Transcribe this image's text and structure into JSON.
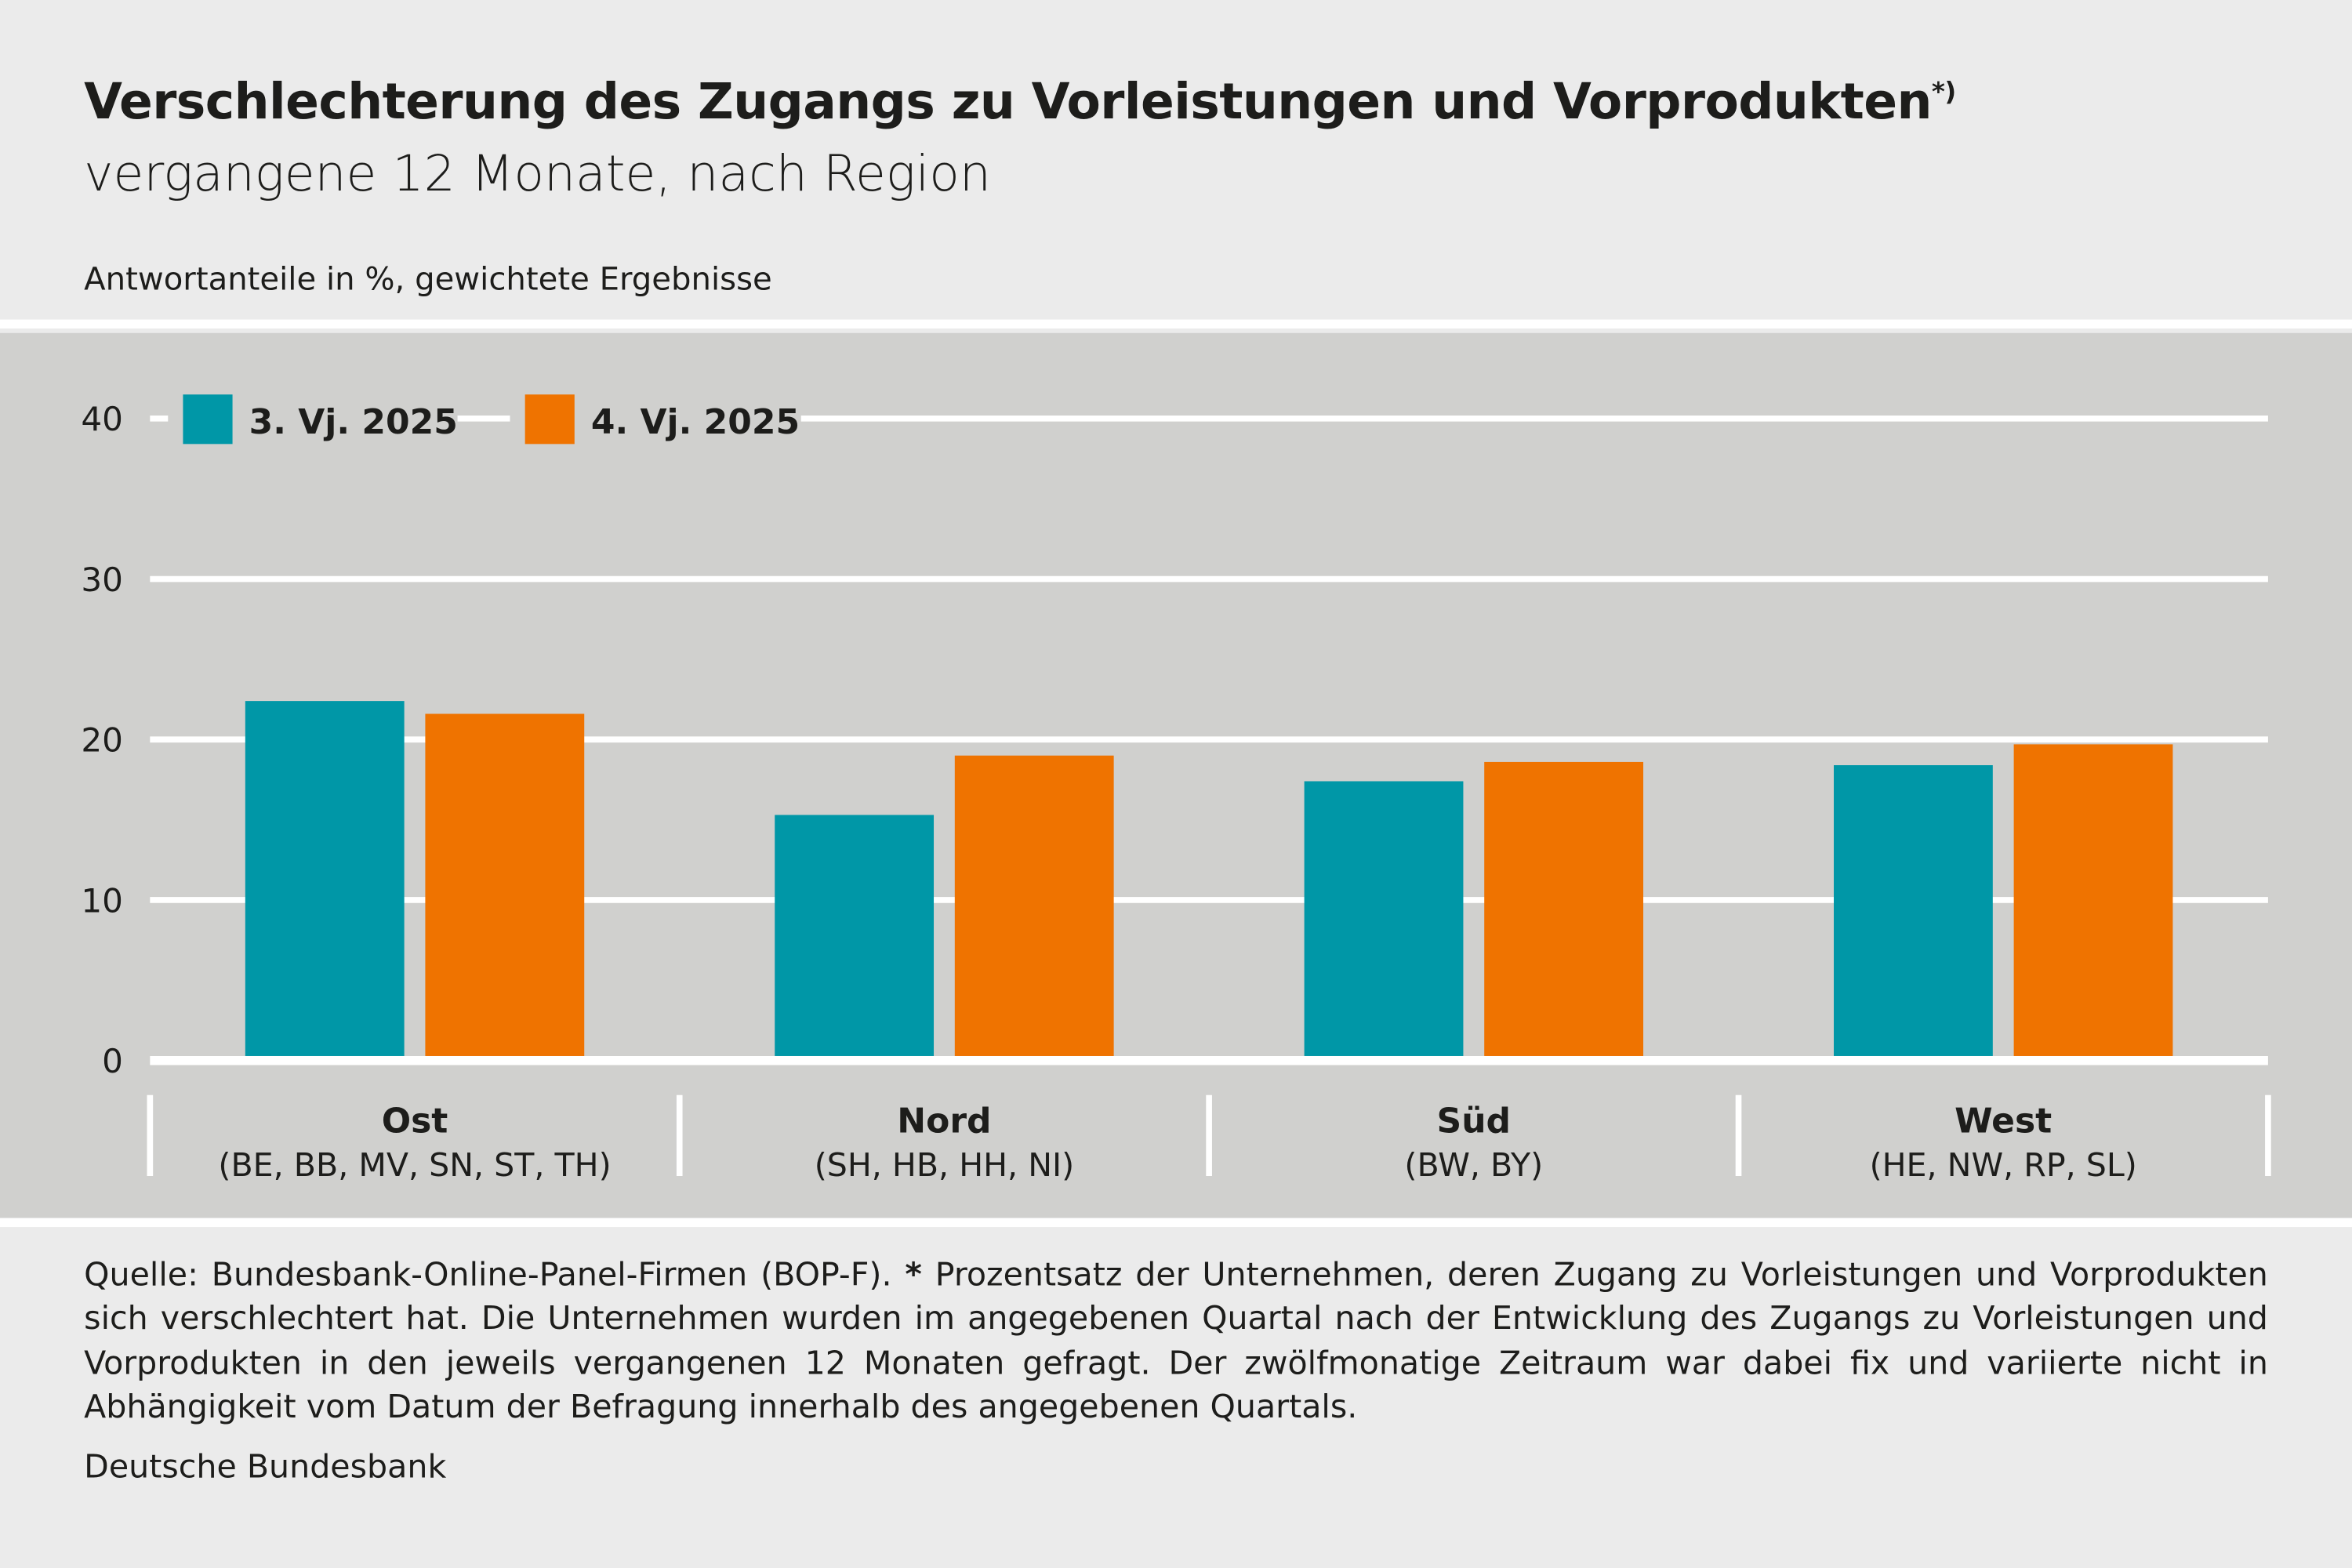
{
  "title": "Verschlechterung des Zugangs zu Vorleistungen und Vorprodukten",
  "title_marker": "*)",
  "subtitle": "vergangene 12 Monate, nach Region",
  "units_label": "Antwortanteile in %, gewichtete Ergebnisse",
  "footnote_source": "Quelle: Bundesbank-Online-Panel-Firmen (BOP-F).",
  "footnote_star": "*",
  "footnote_text": "Prozentsatz der Unternehmen, deren Zugang zu Vorleistungen und Vorprodukten sich verschlechtert hat. Die Unternehmen wurden im angegebenen Quartal nach der Entwicklung des Zugangs zu Vorleistungen und Vorprodukten in den jeweils vergangenen 12 Monaten gefragt. Der zwölfmonatige Zeitraum war dabei fix und variierte nicht in Abhängigkeit vom Datum der Befragung innerhalb des angegebenen Quartals.",
  "publisher": "Deutsche Bundesbank",
  "colors": {
    "series1": "#0097a7",
    "series2": "#ef7300",
    "panel": "#d0d0ce",
    "background": "#ebebeb"
  },
  "chart_data": {
    "type": "bar",
    "categories": [
      "Ost",
      "Nord",
      "Süd",
      "West"
    ],
    "category_sublabels": [
      "(BE, BB, MV, SN, ST, TH)",
      "(SH, HB, HH, NI)",
      "(BW, BY)",
      "(HE, NW, RP, SL)"
    ],
    "series": [
      {
        "name": "3. Vj. 2025",
        "values": [
          22.4,
          15.3,
          17.4,
          18.4
        ]
      },
      {
        "name": "4. Vj. 2025",
        "values": [
          21.6,
          19.0,
          18.6,
          19.7
        ]
      }
    ],
    "ylim": [
      0,
      40
    ],
    "yticks": [
      "0",
      "10",
      "20",
      "30",
      "40"
    ],
    "grid": true,
    "legend_position": "top-left"
  }
}
